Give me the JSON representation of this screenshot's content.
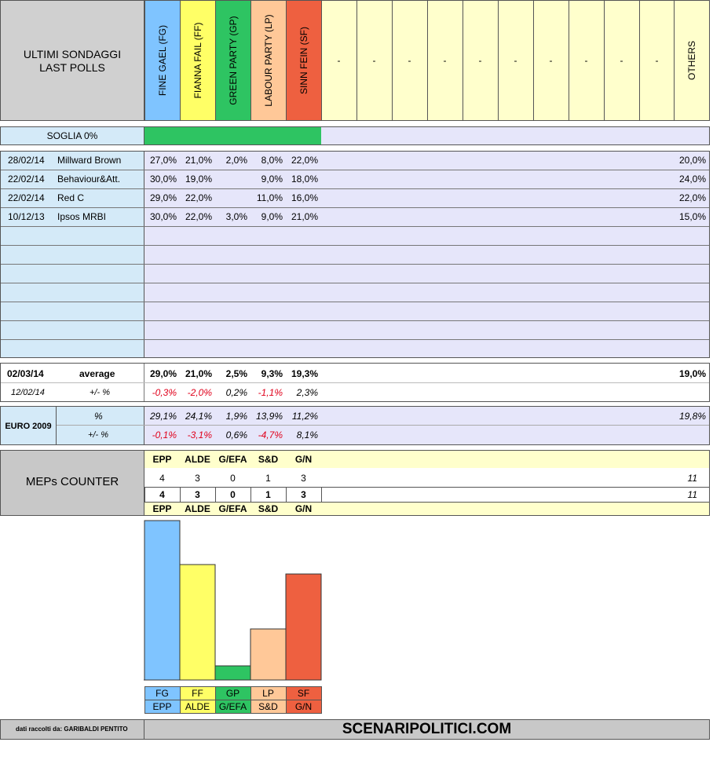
{
  "header": {
    "title_line1": "ULTIMI SONDAGGI",
    "title_line2": "LAST POLLS",
    "parties": [
      {
        "code": "FG",
        "label": "FINE GAEL (FG)",
        "color": "#7fc4ff"
      },
      {
        "code": "FF",
        "label": "FIANNA FAIL (FF)",
        "color": "#ffff66"
      },
      {
        "code": "GP",
        "label": "GREEN PARTY (GP)",
        "color": "#2ec462"
      },
      {
        "code": "LP",
        "label": "LABOUR PARTY (LP)",
        "color": "#ffc898"
      },
      {
        "code": "SF",
        "label": "SINN FEIN (SF)",
        "color": "#ee6040"
      }
    ],
    "empty_cols": [
      "-",
      "-",
      "-",
      "-",
      "-",
      "-",
      "-",
      "-",
      "-",
      "-"
    ],
    "others_label": "OTHERS"
  },
  "threshold": {
    "label": "SOGLIA 0%"
  },
  "polls": [
    {
      "date": "28/02/14",
      "institute": "Millward Brown",
      "values": [
        "27,0%",
        "21,0%",
        "2,0%",
        "8,0%",
        "22,0%"
      ],
      "others": "20,0%"
    },
    {
      "date": "22/02/14",
      "institute": "Behaviour&Att.",
      "values": [
        "30,0%",
        "19,0%",
        "",
        "9,0%",
        "18,0%"
      ],
      "others": "24,0%"
    },
    {
      "date": "22/02/14",
      "institute": "Red C",
      "values": [
        "29,0%",
        "22,0%",
        "",
        "11,0%",
        "16,0%"
      ],
      "others": "22,0%"
    },
    {
      "date": "10/12/13",
      "institute": "Ipsos MRBI",
      "values": [
        "30,0%",
        "22,0%",
        "3,0%",
        "9,0%",
        "21,0%"
      ],
      "others": "15,0%"
    }
  ],
  "average": {
    "date": "02/03/14",
    "label": "average",
    "values": [
      "29,0%",
      "21,0%",
      "2,5%",
      "9,3%",
      "19,3%"
    ],
    "others": "19,0%",
    "prev_date": "12/02/14",
    "delta_label": "+/- %",
    "deltas": [
      "-0,3%",
      "-2,0%",
      "0,2%",
      "-1,1%",
      "2,3%"
    ],
    "delta_negative": [
      true,
      true,
      false,
      true,
      false
    ]
  },
  "euro2009": {
    "label": "EURO 2009",
    "pct_label": "%",
    "delta_label": "+/- %",
    "values": [
      "29,1%",
      "24,1%",
      "1,9%",
      "13,9%",
      "11,2%"
    ],
    "others": "19,8%",
    "deltas": [
      "-0,1%",
      "-3,1%",
      "0,6%",
      "-4,7%",
      "8,1%"
    ],
    "delta_negative": [
      true,
      true,
      false,
      true,
      false
    ]
  },
  "meps": {
    "label": "MEPs COUNTER",
    "groups": [
      "EPP",
      "ALDE",
      "G/EFA",
      "S&D",
      "G/N"
    ],
    "row1": [
      "4",
      "3",
      "0",
      "1",
      "3"
    ],
    "row1_total": "11",
    "row2": [
      "4",
      "3",
      "0",
      "1",
      "3"
    ],
    "row2_total": "11"
  },
  "chart_data": {
    "type": "bar",
    "categories": [
      "FG",
      "FF",
      "GP",
      "LP",
      "SF"
    ],
    "values": [
      29.0,
      21.0,
      2.5,
      9.3,
      19.3
    ],
    "group_labels": [
      "EPP",
      "ALDE",
      "G/EFA",
      "S&D",
      "G/N"
    ],
    "colors": [
      "#7fc4ff",
      "#ffff66",
      "#2ec462",
      "#ffc898",
      "#ee6040"
    ],
    "ylim": [
      0,
      29.0
    ]
  },
  "footer": {
    "credit": "dati raccolti da: GARIBALDI PENTITO",
    "site": "SCENARIPOLITICI.COM"
  }
}
